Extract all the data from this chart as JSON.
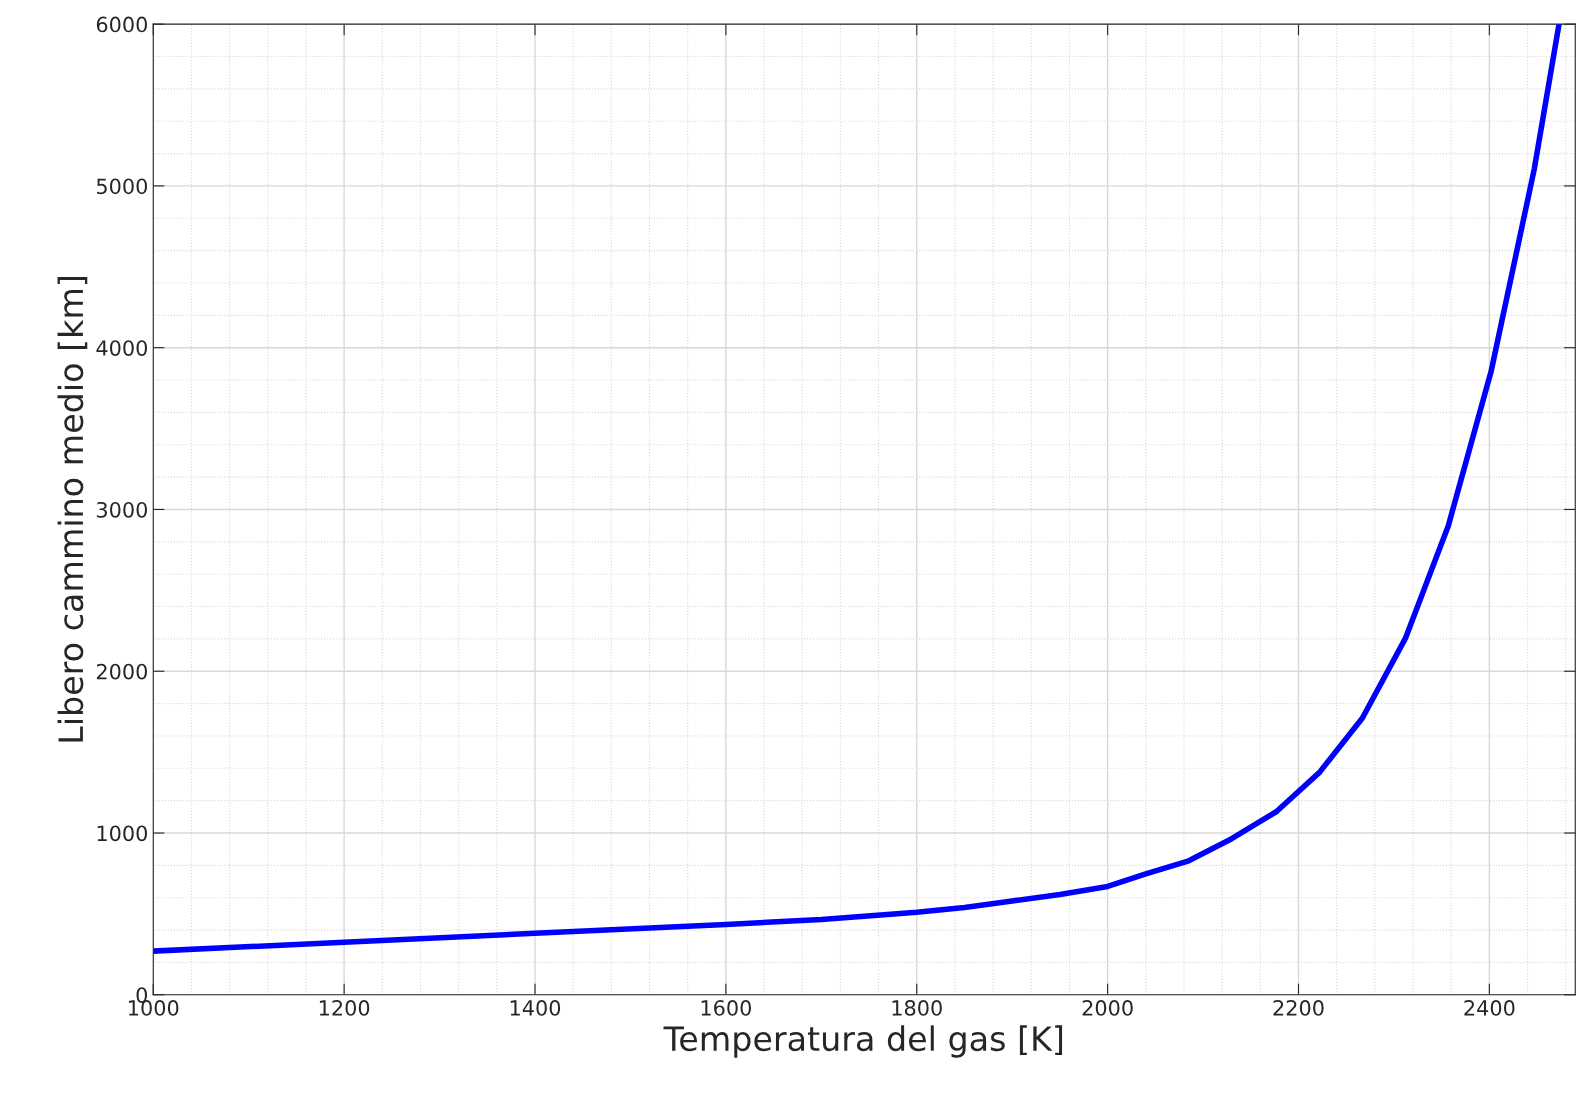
{
  "chart_data": {
    "type": "line",
    "xlabel": "Temperatura del gas [K]",
    "ylabel": "Libero cammino medio [km]",
    "x": [
      1000,
      1200,
      1400,
      1600,
      1700,
      1800,
      1850,
      1900,
      1950,
      2000,
      2040,
      2085,
      2130,
      2177,
      2222,
      2267,
      2312,
      2357,
      2402,
      2447,
      2473
    ],
    "series": [
      {
        "color": "#0000ff",
        "values": [
          270,
          325,
          380,
          435,
          465,
          510,
          540,
          580,
          620,
          670,
          747,
          828,
          965,
          1133,
          1375,
          1711,
          2203,
          2900,
          3858,
          5103,
          6000
        ]
      }
    ],
    "xlim": [
      1000,
      2490
    ],
    "ylim": [
      0,
      6000
    ],
    "xticks": [
      1000,
      1200,
      1400,
      1600,
      1800,
      2000,
      2200,
      2400
    ],
    "yticks": [
      0,
      1000,
      2000,
      3000,
      4000,
      5000,
      6000
    ],
    "grid": true,
    "marker": "none",
    "line_style": "solid"
  }
}
